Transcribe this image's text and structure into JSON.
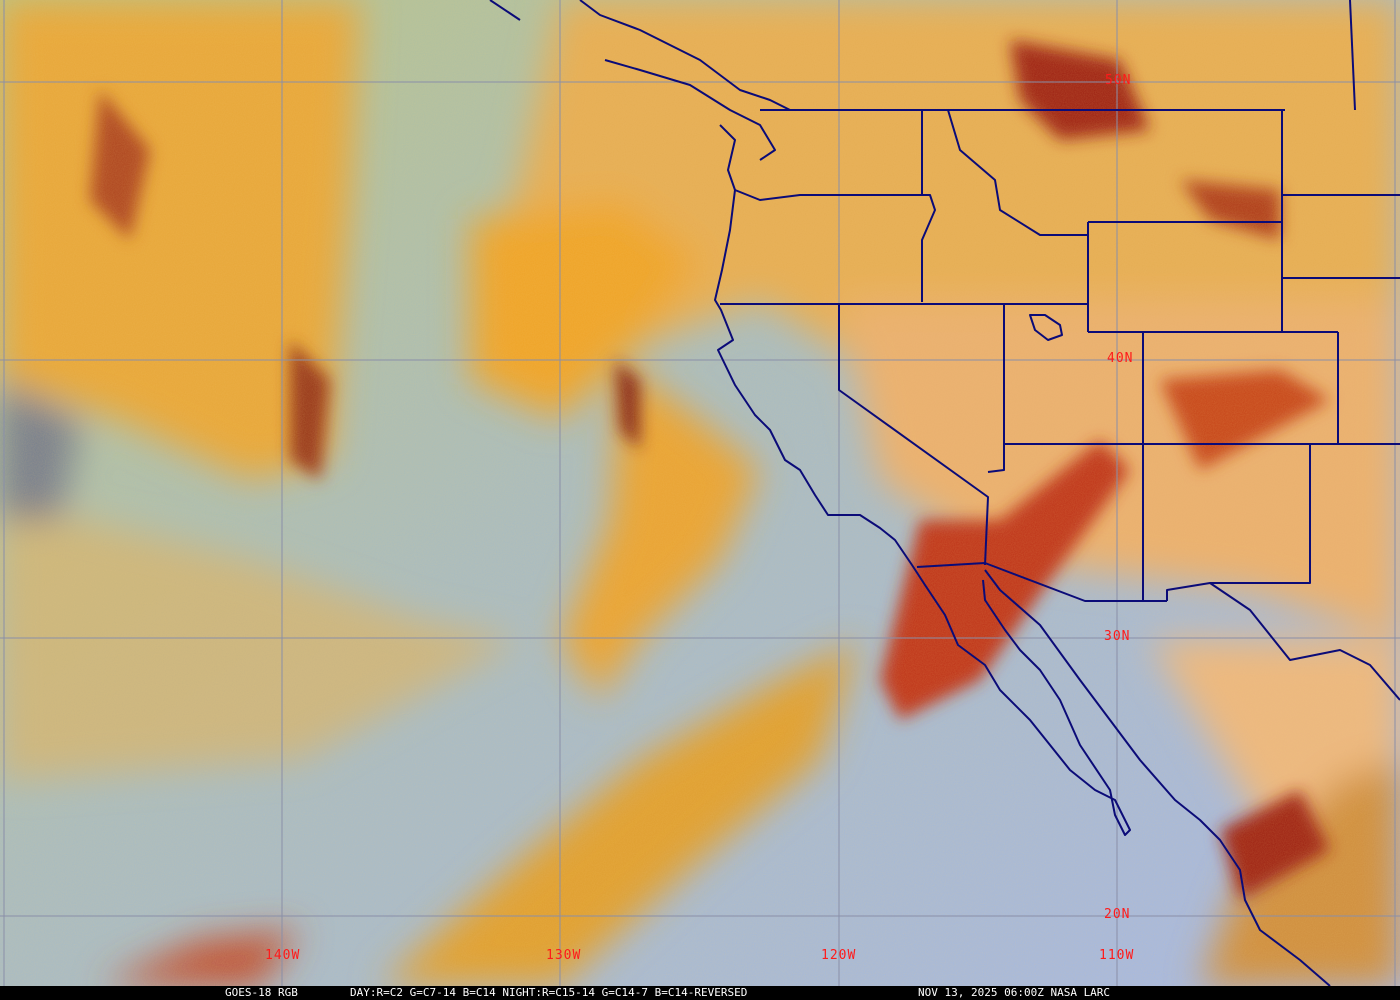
{
  "caption": {
    "satellite": "GOES-18 RGB",
    "recipe": "DAY:R=C2 G=C7-14 B=C14 NIGHT:R=C15-14 G=C14-7 B=C14-REVERSED",
    "timestamp": "NOV 13, 2025 06:00Z NASA LARC"
  },
  "grid_labels": {
    "lat": [
      "50N",
      "40N",
      "30N",
      "20N"
    ],
    "lon": [
      "140W",
      "130W",
      "120W",
      "110W"
    ]
  },
  "colors": {
    "grid": "#8a8fa8",
    "borders": "#0b0b78",
    "labels": "#ff1a1a",
    "ocean_clear": "#a8b8d8",
    "cloud_high": "#e8a020",
    "cloud_thick": "#b83818"
  }
}
